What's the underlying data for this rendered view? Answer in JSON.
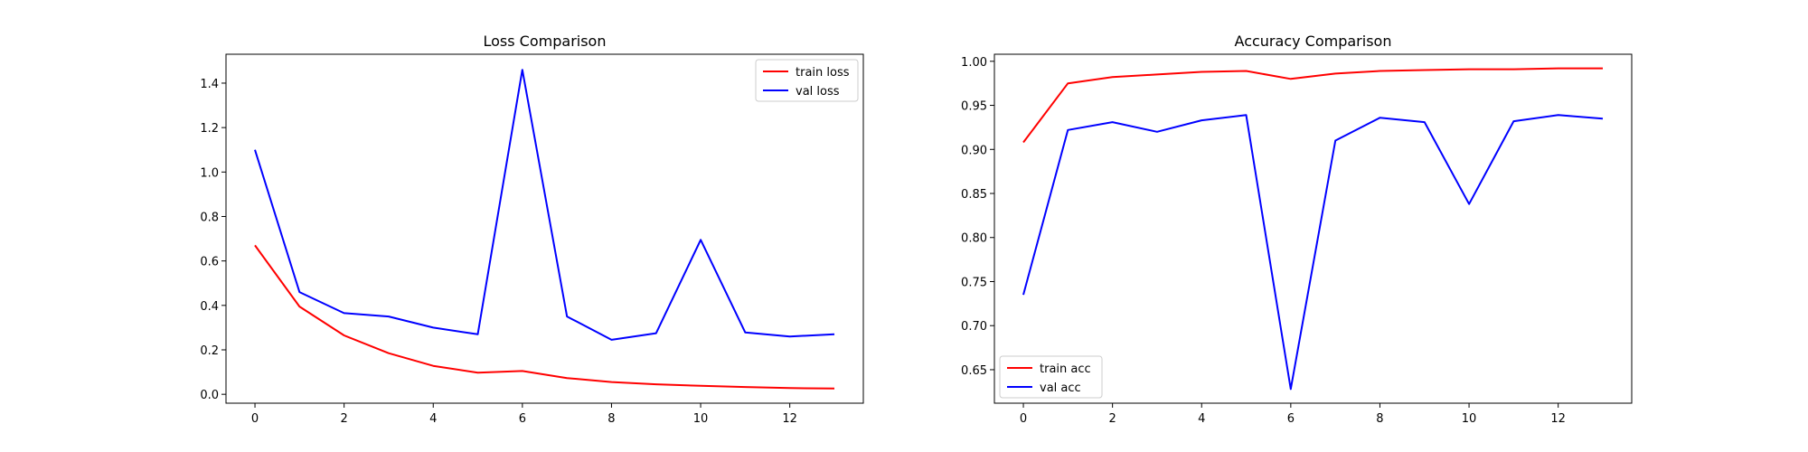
{
  "chart_data": [
    {
      "type": "line",
      "title": "Loss Comparison",
      "xlabel": "",
      "ylabel": "",
      "x": [
        0,
        1,
        2,
        3,
        4,
        5,
        6,
        7,
        8,
        9,
        10,
        11,
        12,
        13
      ],
      "xlim": [
        -0.65,
        13.65
      ],
      "ylim": [
        -0.04,
        1.53
      ],
      "xticks": [
        0,
        2,
        4,
        6,
        8,
        10,
        12
      ],
      "xtick_labels": [
        "0",
        "2",
        "4",
        "6",
        "8",
        "10",
        "12"
      ],
      "yticks": [
        0.0,
        0.2,
        0.4,
        0.6,
        0.8,
        1.0,
        1.2,
        1.4
      ],
      "ytick_labels": [
        "0.0",
        "0.2",
        "0.4",
        "0.6",
        "0.8",
        "1.0",
        "1.2",
        "1.4"
      ],
      "grid": false,
      "legend_position": "top-right",
      "series": [
        {
          "name": "train loss",
          "color": "#ff0000",
          "values": [
            0.67,
            0.395,
            0.265,
            0.185,
            0.128,
            0.097,
            0.105,
            0.073,
            0.055,
            0.045,
            0.038,
            0.033,
            0.028,
            0.026
          ]
        },
        {
          "name": "val loss",
          "color": "#0000ff",
          "values": [
            1.1,
            0.46,
            0.365,
            0.35,
            0.3,
            0.27,
            1.46,
            0.35,
            0.245,
            0.275,
            0.695,
            0.278,
            0.26,
            0.27
          ]
        }
      ]
    },
    {
      "type": "line",
      "title": "Accuracy Comparison",
      "xlabel": "",
      "ylabel": "",
      "x": [
        0,
        1,
        2,
        3,
        4,
        5,
        6,
        7,
        8,
        9,
        10,
        11,
        12,
        13
      ],
      "xlim": [
        -0.65,
        13.65
      ],
      "ylim": [
        0.612,
        1.008
      ],
      "xticks": [
        0,
        2,
        4,
        6,
        8,
        10,
        12
      ],
      "xtick_labels": [
        "0",
        "2",
        "4",
        "6",
        "8",
        "10",
        "12"
      ],
      "yticks": [
        0.65,
        0.7,
        0.75,
        0.8,
        0.85,
        0.9,
        0.95,
        1.0
      ],
      "ytick_labels": [
        "0.65",
        "0.70",
        "0.75",
        "0.80",
        "0.85",
        "0.90",
        "0.95",
        "1.00"
      ],
      "grid": false,
      "legend_position": "bottom-left",
      "series": [
        {
          "name": "train acc",
          "color": "#ff0000",
          "values": [
            0.908,
            0.975,
            0.982,
            0.985,
            0.988,
            0.989,
            0.98,
            0.986,
            0.989,
            0.99,
            0.991,
            0.991,
            0.992,
            0.992
          ]
        },
        {
          "name": "val acc",
          "color": "#0000ff",
          "values": [
            0.735,
            0.922,
            0.931,
            0.92,
            0.933,
            0.939,
            0.628,
            0.91,
            0.936,
            0.931,
            0.838,
            0.932,
            0.939,
            0.935
          ]
        }
      ]
    }
  ]
}
